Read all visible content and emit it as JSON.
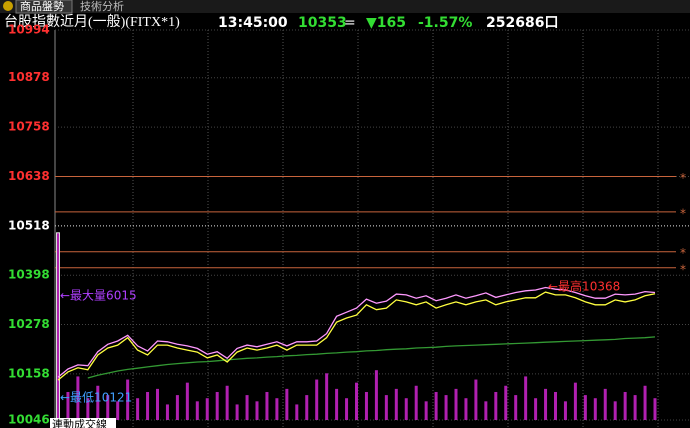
{
  "tabs": [
    "商品盤勢",
    "技術分析"
  ],
  "header": {
    "title": "台股指數近月(一般)(FITX*1)",
    "time": "13:45:00",
    "price": "10353",
    "flat": "=",
    "change": "▼165",
    "change_pct": "-1.57%",
    "volume": "252686口"
  },
  "chart_data": {
    "type": "line",
    "ylim": [
      10046,
      10994
    ],
    "yticks": [
      10046,
      10158,
      10278,
      10398,
      10518,
      10638,
      10758,
      10878,
      10994
    ],
    "reference": 10518,
    "ref_lines": [
      10638,
      10552,
      10455,
      10416
    ],
    "ref_marker": "*",
    "colors": {
      "up": "#ff3030",
      "down": "#33dd33",
      "flat": "#ffffff",
      "ref_line": "#c8643c",
      "volume": "#b020b0"
    },
    "series": [
      {
        "name": "price",
        "color": "#ffff40",
        "values": [
          10143,
          10163,
          10173,
          10168,
          10204,
          10221,
          10228,
          10246,
          10216,
          10204,
          10228,
          10228,
          10221,
          10216,
          10211,
          10197,
          10204,
          10187,
          10211,
          10221,
          10216,
          10221,
          10228,
          10216,
          10228,
          10228,
          10228,
          10246,
          10284,
          10294,
          10301,
          10326,
          10314,
          10318,
          10338,
          10333,
          10326,
          10333,
          10318,
          10326,
          10333,
          10326,
          10333,
          10338,
          10326,
          10333,
          10338,
          10343,
          10343,
          10357,
          10350,
          10350,
          10343,
          10333,
          10326,
          10326,
          10338,
          10333,
          10338,
          10348,
          10353
        ]
      },
      {
        "name": "upper",
        "color": "#ff99ff",
        "values": [
          10150,
          10170,
          10180,
          10178,
          10212,
          10230,
          10238,
          10252,
          10226,
          10214,
          10238,
          10236,
          10230,
          10226,
          10220,
          10206,
          10212,
          10196,
          10220,
          10228,
          10224,
          10230,
          10236,
          10226,
          10236,
          10236,
          10238,
          10256,
          10298,
          10308,
          10318,
          10340,
          10330,
          10335,
          10352,
          10350,
          10342,
          10348,
          10336,
          10342,
          10350,
          10342,
          10348,
          10355,
          10344,
          10350,
          10356,
          10360,
          10362,
          10368,
          10364,
          10362,
          10356,
          10348,
          10342,
          10342,
          10352,
          10350,
          10352,
          10358,
          10356
        ]
      },
      {
        "name": "average",
        "color": "#339933",
        "values": [
          null,
          null,
          null,
          10148,
          10155,
          10160,
          10165,
          10169,
          10172,
          10175,
          10178,
          10181,
          10183,
          10185,
          10187,
          10188,
          10190,
          10192,
          10194,
          10196,
          10197,
          10199,
          10200,
          10202,
          10203,
          10205,
          10206,
          10208,
          10209,
          10211,
          10212,
          10214,
          10215,
          10217,
          10218,
          10219,
          10221,
          10222,
          10223,
          10225,
          10226,
          10227,
          10228,
          10229,
          10230,
          10231,
          10232,
          10233,
          10234,
          10235,
          10236,
          10237,
          10238,
          10239,
          10240,
          10241,
          10242,
          10244,
          10245,
          10246,
          10248
        ]
      }
    ],
    "volume": [
      6015,
      900,
      1400,
      700,
      1100,
      800,
      600,
      1300,
      700,
      900,
      1000,
      500,
      800,
      1200,
      600,
      700,
      900,
      1100,
      500,
      800,
      600,
      900,
      700,
      1000,
      500,
      800,
      1300,
      1500,
      1000,
      700,
      1200,
      900,
      1600,
      800,
      1000,
      700,
      1100,
      600,
      900,
      800,
      1000,
      700,
      1300,
      600,
      900,
      1100,
      800,
      1400,
      700,
      1000,
      900,
      600,
      1200,
      800,
      700,
      1000,
      600,
      900,
      800,
      1100,
      700
    ],
    "annotations": [
      {
        "text": "←最大量6015",
        "color": "#b040ff"
      },
      {
        "text": "←最高10368",
        "color": "#ff3030"
      },
      {
        "text": "←最低10121",
        "color": "#40a0ff"
      }
    ],
    "footer": "連動成交線"
  }
}
